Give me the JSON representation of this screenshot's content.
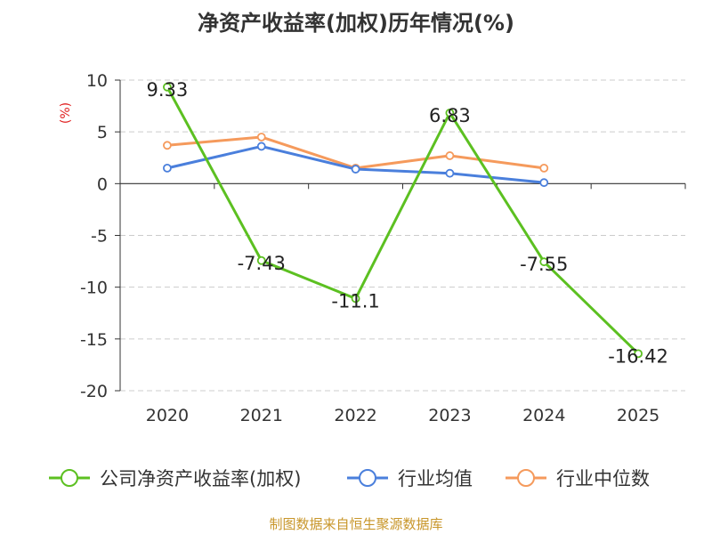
{
  "chart_data": {
    "type": "line",
    "title": "净资产收益率(加权)历年情况(%)",
    "ylabel": "(%)",
    "xlabel": "",
    "categories": [
      "2020",
      "2021",
      "2022",
      "2023",
      "2024",
      "2025"
    ],
    "ylim": [
      -20,
      10
    ],
    "yticks": [
      10,
      5,
      0,
      -5,
      -10,
      -15,
      -20
    ],
    "grid": "horizontal dashed",
    "legend_position": "bottom",
    "series": [
      {
        "name": "公司净资产收益率(加权)",
        "color": "#5cc021",
        "values": [
          9.33,
          -7.43,
          -11.1,
          6.83,
          -7.55,
          -16.42
        ],
        "labels": [
          "9.33",
          "-7.43",
          "-11.1",
          "6.83",
          "-7.55",
          "-16.42"
        ]
      },
      {
        "name": "行业均值",
        "color": "#4a7fdc",
        "values": [
          1.5,
          3.6,
          1.4,
          1.0,
          0.1,
          null
        ]
      },
      {
        "name": "行业中位数",
        "color": "#f59a5c",
        "values": [
          3.7,
          4.5,
          1.5,
          2.7,
          1.5,
          null
        ]
      }
    ],
    "source": "制图数据来自恒生聚源数据库",
    "ylabel_color": "#e02020",
    "source_color": "#c8962a"
  }
}
